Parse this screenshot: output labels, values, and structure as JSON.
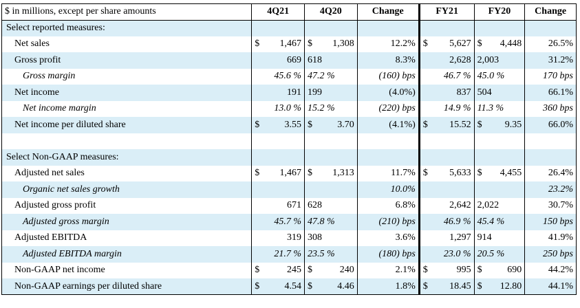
{
  "header": {
    "label": "$ in millions, except per share amounts",
    "cols": [
      "4Q21",
      "4Q20",
      "Change",
      "FY21",
      "FY20",
      "Change"
    ]
  },
  "rows": [
    {
      "label": "Select reported measures:",
      "level": 0,
      "italic": false,
      "cells": [
        "",
        "",
        "",
        "",
        "",
        ""
      ]
    },
    {
      "label": "Net sales",
      "level": 1,
      "italic": false,
      "cells": [
        "$ 1,467",
        "$ 1,308",
        "12.2%",
        "$ 5,627",
        "$ 4,448",
        "26.5%"
      ]
    },
    {
      "label": "Gross profit",
      "level": 1,
      "italic": false,
      "cells": [
        "669",
        "618",
        "8.3%",
        "2,628",
        "2,003",
        "31.2%"
      ]
    },
    {
      "label": "Gross margin",
      "level": 2,
      "italic": true,
      "cells": [
        "45.6 %",
        "47.2 %",
        "(160) bps",
        "46.7 %",
        "45.0 %",
        "170 bps"
      ]
    },
    {
      "label": "Net income",
      "level": 1,
      "italic": false,
      "cells": [
        "191",
        "199",
        "(4.0%)",
        "837",
        "504",
        "66.1%"
      ]
    },
    {
      "label": "Net income margin",
      "level": 2,
      "italic": true,
      "cells": [
        "13.0 %",
        "15.2 %",
        "(220) bps",
        "14.9 %",
        "11.3 %",
        "360 bps"
      ]
    },
    {
      "label": "Net income per diluted share",
      "level": 1,
      "italic": false,
      "cells": [
        "$ 3.55",
        "$ 3.70",
        "(4.1%)",
        "$ 15.52",
        "$ 9.35",
        "66.0%"
      ]
    },
    {
      "label": "",
      "level": 0,
      "italic": false,
      "cells": [
        "",
        "",
        "",
        "",
        "",
        ""
      ]
    },
    {
      "label": "Select Non-GAAP measures:",
      "level": 0,
      "italic": false,
      "cells": [
        "",
        "",
        "",
        "",
        "",
        ""
      ]
    },
    {
      "label": "Adjusted net sales",
      "level": 1,
      "italic": false,
      "cells": [
        "$ 1,467",
        "$ 1,313",
        "11.7%",
        "$ 5,633",
        "$ 4,455",
        "26.4%"
      ]
    },
    {
      "label": "Organic net sales growth",
      "level": 2,
      "italic": true,
      "cells": [
        "",
        "",
        "10.0%",
        "",
        "",
        "23.2%"
      ]
    },
    {
      "label": "Adjusted gross profit",
      "level": 1,
      "italic": false,
      "cells": [
        "671",
        "628",
        "6.8%",
        "2,642",
        "2,022",
        "30.7%"
      ]
    },
    {
      "label": "Adjusted gross margin",
      "level": 2,
      "italic": true,
      "cells": [
        "45.7 %",
        "47.8 %",
        "(210) bps",
        "46.9 %",
        "45.4 %",
        "150 bps"
      ]
    },
    {
      "label": "Adjusted EBITDA",
      "level": 1,
      "italic": false,
      "cells": [
        "319",
        "308",
        "3.6%",
        "1,297",
        "914",
        "41.9%"
      ]
    },
    {
      "label": "Adjusted EBITDA margin",
      "level": 2,
      "italic": true,
      "cells": [
        "21.7 %",
        "23.5 %",
        "(180) bps",
        "23.0 %",
        "20.5 %",
        "250 bps"
      ]
    },
    {
      "label": "Non-GAAP net income",
      "level": 1,
      "italic": false,
      "cells": [
        "$ 245",
        "$ 240",
        "2.1%",
        "$ 995",
        "$ 690",
        "44.2%"
      ]
    },
    {
      "label": "Non-GAAP earnings per diluted share",
      "level": 1,
      "italic": false,
      "cells": [
        "$ 4.54",
        "$ 4.46",
        "1.8%",
        "$ 18.45",
        "$ 12.80",
        "44.1%"
      ]
    }
  ],
  "colors": {
    "band": "#daeef7",
    "rule": "#000000"
  }
}
